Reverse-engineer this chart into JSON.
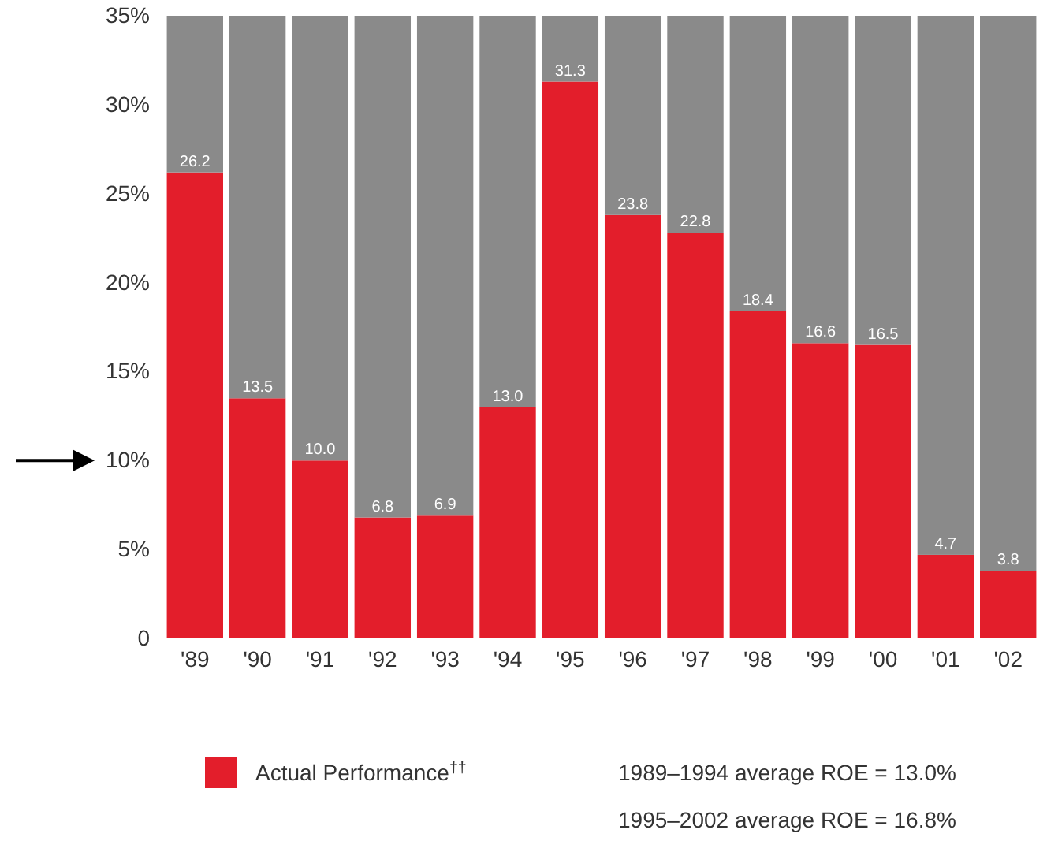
{
  "chart_data": {
    "type": "bar",
    "stacked": true,
    "categories": [
      "'89",
      "'90",
      "'91",
      "'92",
      "'93",
      "'94",
      "'95",
      "'96",
      "'97",
      "'98",
      "'99",
      "'00",
      "'01",
      "'02"
    ],
    "series": [
      {
        "name": "Actual Performance$^{††}$",
        "color": "#e31e2b",
        "values": [
          26.2,
          13.5,
          10.0,
          6.8,
          6.9,
          13.0,
          31.3,
          23.8,
          22.8,
          18.4,
          16.6,
          16.5,
          4.7,
          3.8
        ],
        "value_labels": [
          "26.2",
          "13.5",
          "10.0",
          "6.8",
          "6.9",
          "13.0",
          "31.3",
          "23.8",
          "22.8",
          "18.4",
          "16.6",
          "16.5",
          "4.7",
          "3.8"
        ]
      },
      {
        "color": "#8a8a8a",
        "values": [
          8.8,
          21.5,
          25.0,
          28.2,
          28.1,
          22.0,
          3.7,
          11.2,
          12.2,
          16.6,
          18.4,
          18.5,
          30.3,
          31.2
        ]
      }
    ],
    "ylim": [
      0,
      35
    ],
    "yticks": [
      {
        "value": 0,
        "label": "0"
      },
      {
        "value": 5,
        "label": "5%"
      },
      {
        "value": 10,
        "label": "10%"
      },
      {
        "value": 15,
        "label": "15%"
      },
      {
        "value": 20,
        "label": "20%"
      },
      {
        "value": 25,
        "label": "25%"
      },
      {
        "value": 30,
        "label": "30%"
      },
      {
        "value": 35,
        "label": "35%"
      }
    ],
    "legend": "bottom left",
    "annotations": [
      "1989–1994 average ROE = 13.0%",
      "1995–2002 average ROE = 16.8%"
    ]
  }
}
